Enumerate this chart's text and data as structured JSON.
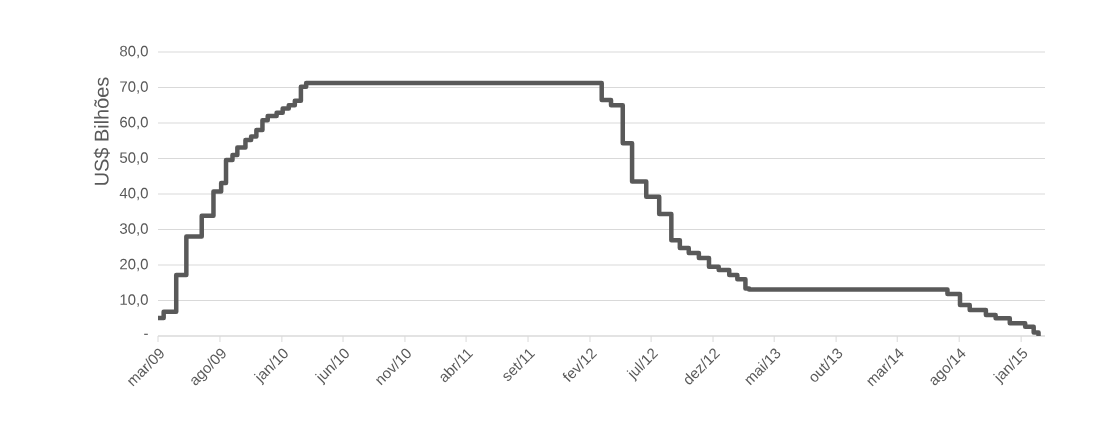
{
  "chart_data": {
    "type": "step",
    "ylabel": "US$ Bilhões",
    "grid": "y",
    "color": "#595959",
    "x": [
      "2009-03-01",
      "2009-03-15",
      "2009-04-15",
      "2009-05-10",
      "2009-06-17",
      "2009-07-16",
      "2009-08-04",
      "2009-08-16",
      "2009-09-01",
      "2009-09-13",
      "2009-10-03",
      "2009-10-17",
      "2009-10-30",
      "2009-11-14",
      "2009-11-27",
      "2009-12-19",
      "2010-01-03",
      "2010-01-18",
      "2010-02-02",
      "2010-02-17",
      "2010-03-02",
      "2012-03-01",
      "2012-03-24",
      "2012-04-22",
      "2012-05-15",
      "2012-06-19",
      "2012-07-21",
      "2012-08-20",
      "2012-09-10",
      "2012-10-02",
      "2012-10-27",
      "2012-11-21",
      "2012-12-15",
      "2013-01-10",
      "2013-01-30",
      "2013-02-19",
      "2013-02-28",
      "2014-07-03",
      "2014-08-03",
      "2014-08-27",
      "2014-10-06",
      "2014-10-30",
      "2014-12-04",
      "2015-01-11",
      "2015-02-01",
      "2015-02-13"
    ],
    "values": [
      5.1,
      6.8,
      17.2,
      28.0,
      33.9,
      40.7,
      43.1,
      49.6,
      51.0,
      53.1,
      55.2,
      56.2,
      58.0,
      60.8,
      62.0,
      62.9,
      64.1,
      65.0,
      66.3,
      70.2,
      71.3,
      66.5,
      65.0,
      54.3,
      43.5,
      39.2,
      34.4,
      27.0,
      24.8,
      23.4,
      22.0,
      19.5,
      18.6,
      17.2,
      16.0,
      13.4,
      13.1,
      11.8,
      8.7,
      7.3,
      5.9,
      5.0,
      3.6,
      2.6,
      1.0,
      0
    ],
    "xlim": [
      "2009-03-01",
      "2015-03-01"
    ],
    "xticks": [
      {
        "value": "2009-03-01",
        "label": "mar/09"
      },
      {
        "value": "2009-08-01",
        "label": "ago/09"
      },
      {
        "value": "2010-01-01",
        "label": "jan/10"
      },
      {
        "value": "2010-06-01",
        "label": "jun/10"
      },
      {
        "value": "2010-11-01",
        "label": "nov/10"
      },
      {
        "value": "2011-04-01",
        "label": "abr/11"
      },
      {
        "value": "2011-09-01",
        "label": "set/11"
      },
      {
        "value": "2012-02-01",
        "label": "fev/12"
      },
      {
        "value": "2012-07-01",
        "label": "jul/12"
      },
      {
        "value": "2012-12-01",
        "label": "dez/12"
      },
      {
        "value": "2013-05-01",
        "label": "mai/13"
      },
      {
        "value": "2013-10-01",
        "label": "out/13"
      },
      {
        "value": "2014-03-01",
        "label": "mar/14"
      },
      {
        "value": "2014-08-01",
        "label": "ago/14"
      },
      {
        "value": "2015-01-01",
        "label": "jan/15"
      }
    ],
    "ylim": [
      0,
      80
    ],
    "yticks": [
      {
        "value": 0,
        "label": "-"
      },
      {
        "value": 10,
        "label": "10,0"
      },
      {
        "value": 20,
        "label": "20,0"
      },
      {
        "value": 30,
        "label": "30,0"
      },
      {
        "value": 40,
        "label": "40,0"
      },
      {
        "value": 50,
        "label": "50,0"
      },
      {
        "value": 60,
        "label": "60,0"
      },
      {
        "value": 70,
        "label": "70,0"
      },
      {
        "value": 80,
        "label": "80,0"
      }
    ]
  }
}
